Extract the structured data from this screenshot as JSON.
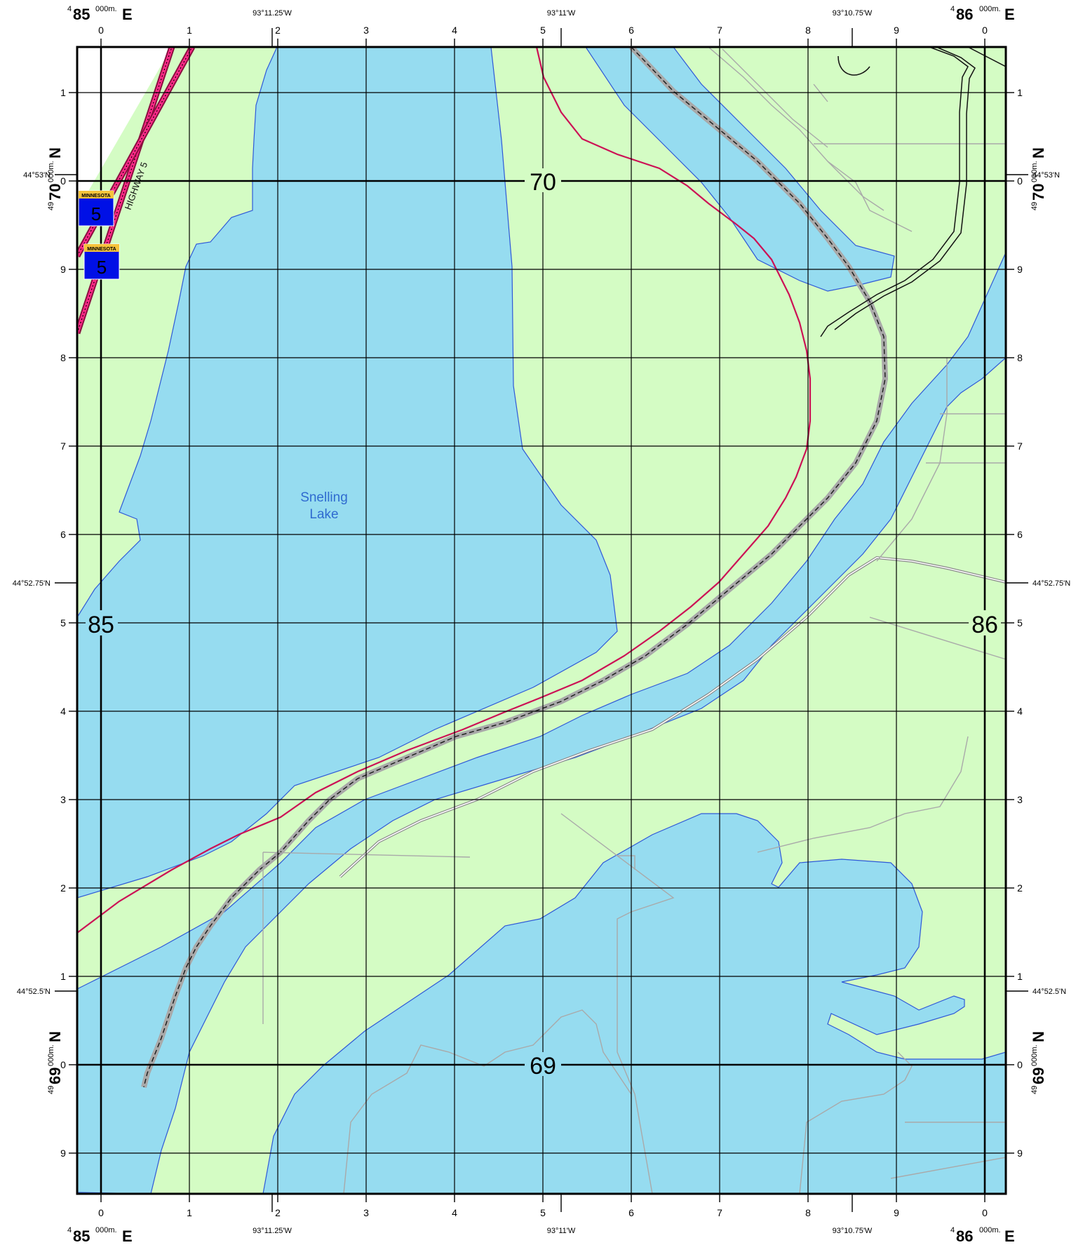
{
  "map": {
    "colors": {
      "land": "#d4fcc4",
      "water": "#96dcf0",
      "water_edge": "#2f58d8",
      "road_red": "#cc1155",
      "road_gray": "#a9a9a9",
      "shield_blue": "#0010e6",
      "shield_yellow": "#f6c33b"
    },
    "lake_label_line1": "Snelling",
    "lake_label_line2": "Lake",
    "highway_label": "HIGHWAY 5",
    "shield_top_text": "MINNESOTA",
    "shield_number": "5",
    "grid": {
      "top_easting_prefix_left": "4",
      "top_easting_major_left": "85",
      "top_easting_sub": "000m.",
      "top_easting_E": "E",
      "top_easting_prefix_right": "4",
      "top_easting_major_right": "86",
      "easting_ticks": [
        "0",
        "1",
        "2",
        "3",
        "4",
        "5",
        "6",
        "7",
        "8",
        "9",
        "0"
      ],
      "northing_ticks": [
        "1",
        "0",
        "9",
        "8",
        "7",
        "6",
        "5",
        "4",
        "3",
        "2",
        "1",
        "0",
        "9"
      ],
      "northing_prefix": "49",
      "northing_70": "70",
      "northing_69": "69",
      "northing_sub": "000m.",
      "northing_N": "N",
      "center_70": "70",
      "center_69": "69",
      "center_85": "85",
      "center_86": "86"
    },
    "geo_labels": {
      "lon_1": "93°11.25'W",
      "lon_2": "93°11'W",
      "lon_3": "93°10.75'W",
      "lat_1": "44°53'N",
      "lat_2": "44°52.75'N",
      "lat_3": "44°52.5'N"
    }
  }
}
